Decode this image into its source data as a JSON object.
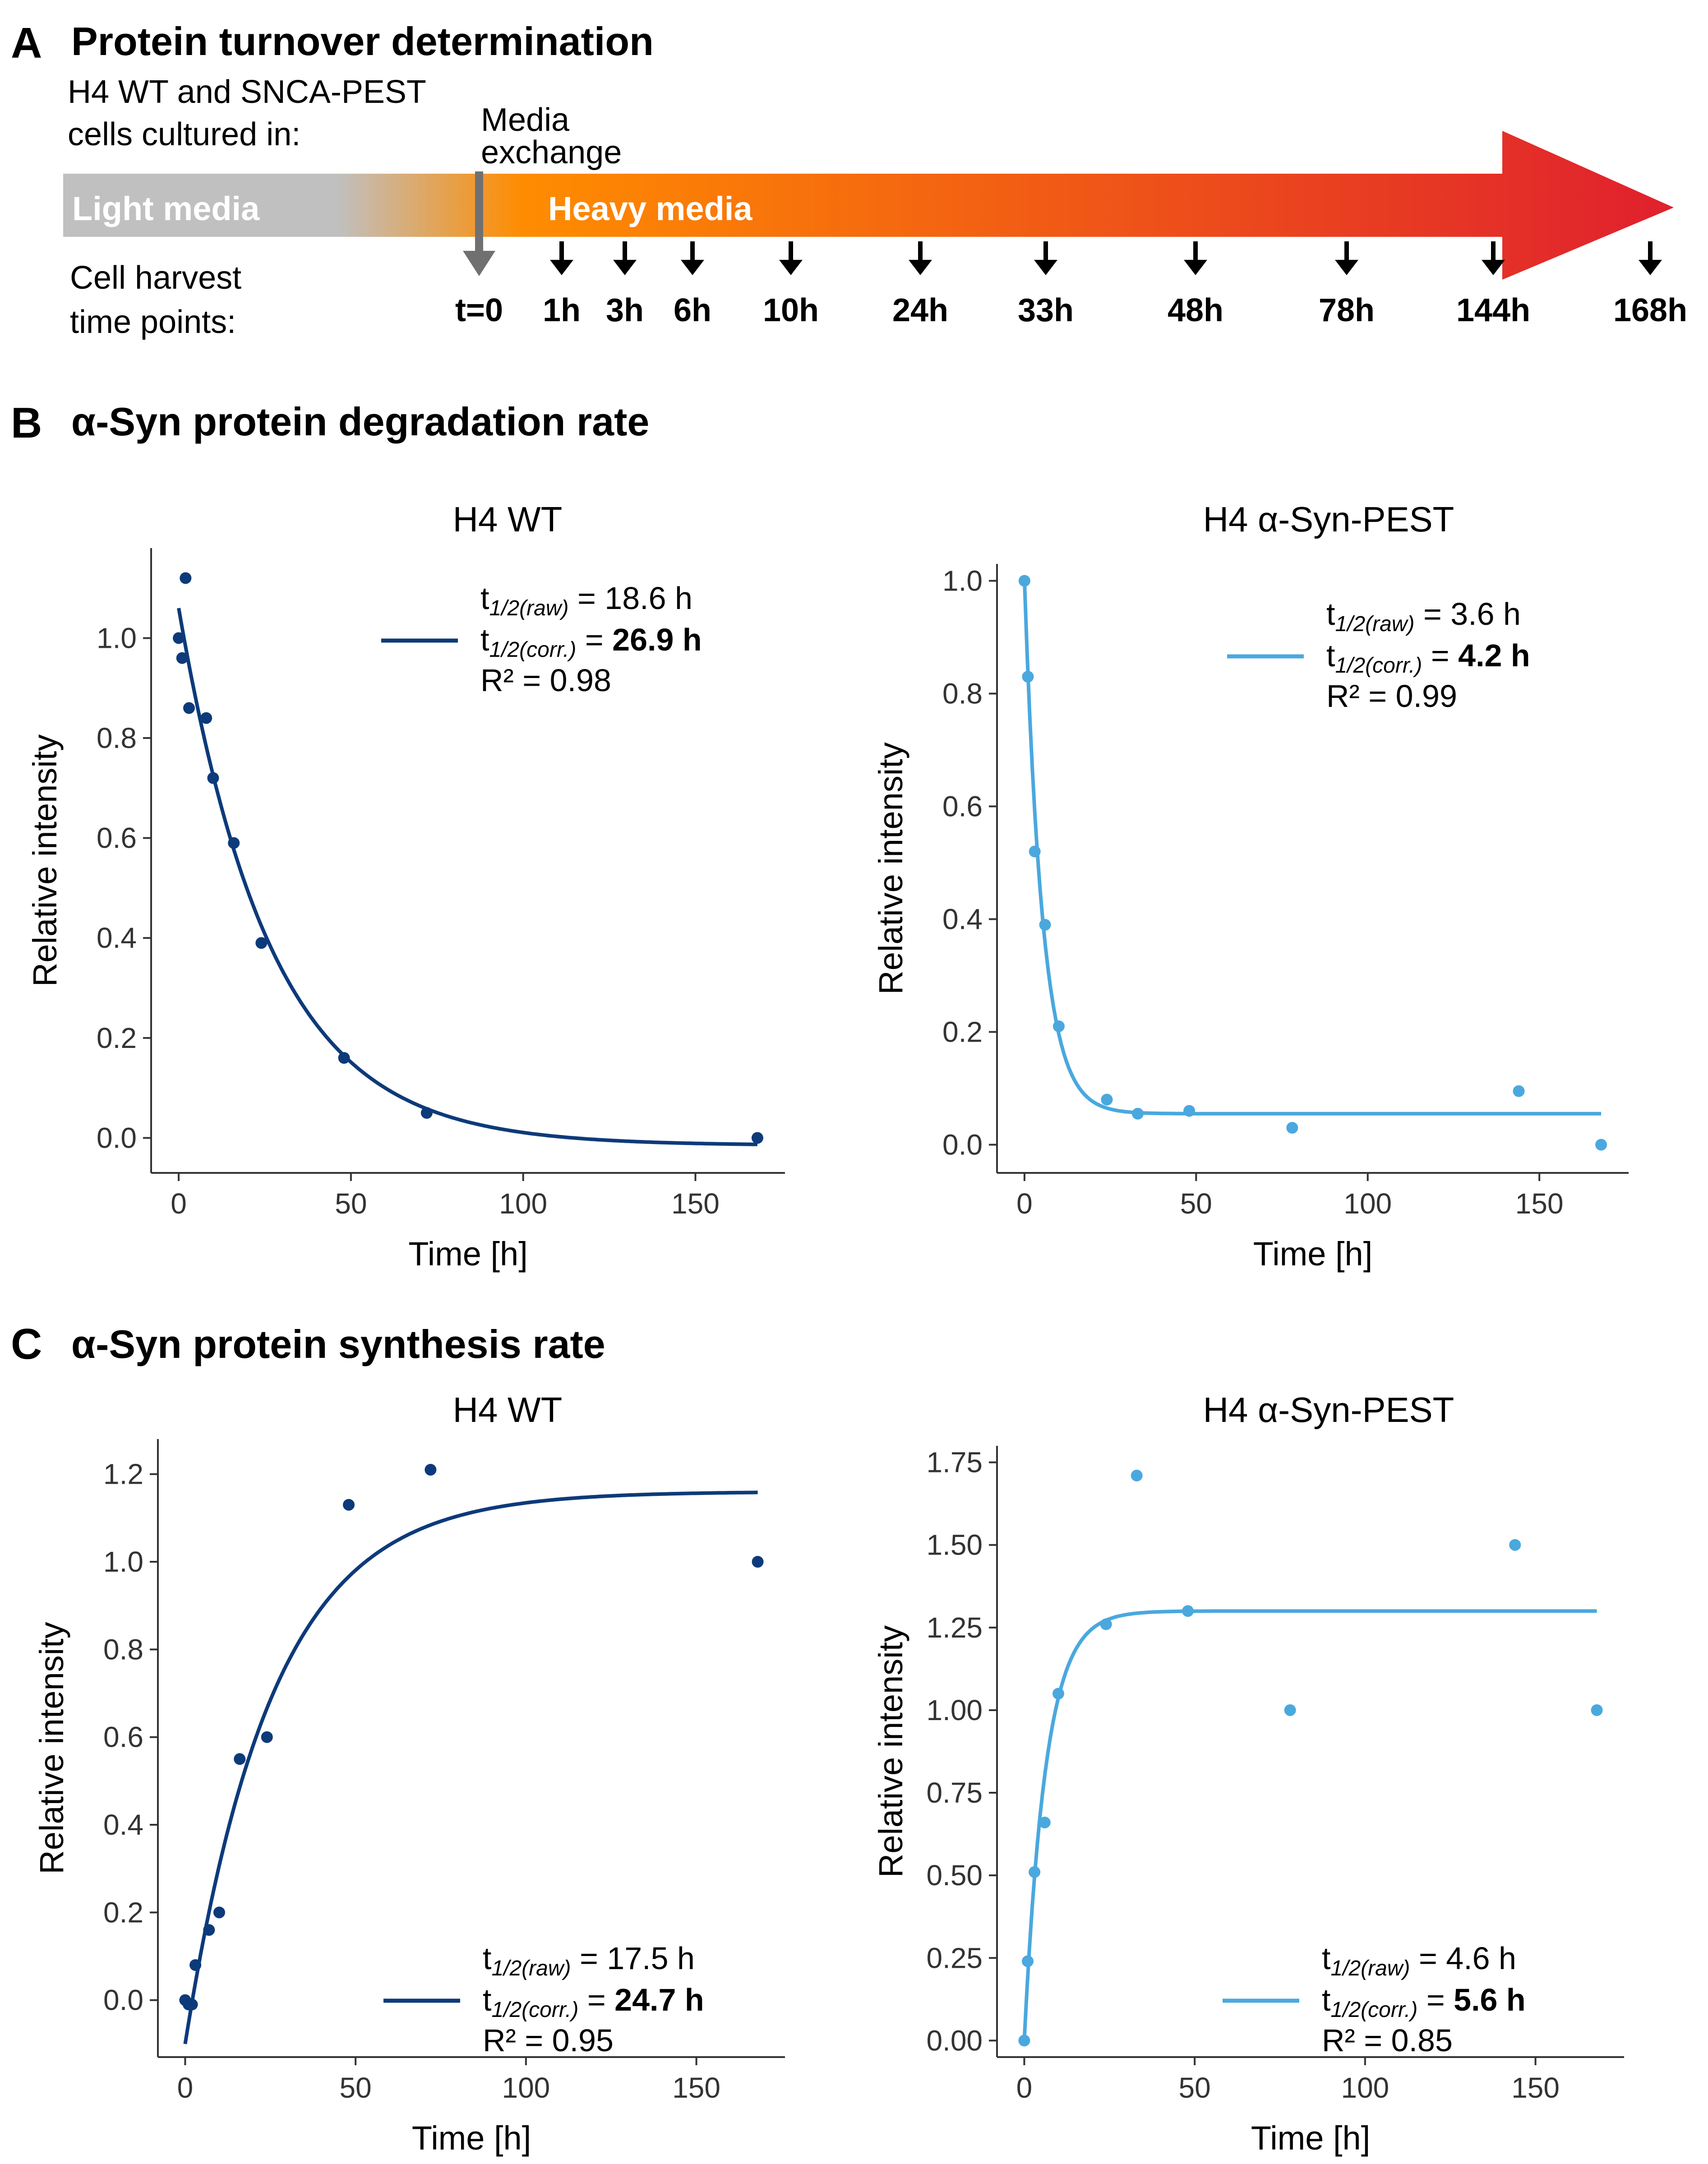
{
  "panel_a": {
    "letter": "A",
    "title": "Protein turnover determination",
    "cells_line1": "H4 WT and SNCA-PEST",
    "cells_line2": "cells cultured in:",
    "exchange_line1": "Media",
    "exchange_line2": "exchange",
    "light_label": "Light media",
    "heavy_label": "Heavy media",
    "harvest_line1": "Cell harvest",
    "harvest_line2": "time points:",
    "time_points": [
      "t=0",
      "1h",
      "3h",
      "6h",
      "10h",
      "24h",
      "33h",
      "48h",
      "78h",
      "144h",
      "168h"
    ],
    "colors": {
      "light": "#c0c0c0",
      "orange": "#ff8c00",
      "red": "#e0202e",
      "marker": "#707070"
    }
  },
  "panel_b": {
    "letter": "B",
    "title": "α-Syn protein degradation rate"
  },
  "panel_c": {
    "letter": "C",
    "title": "α-Syn protein synthesis rate"
  },
  "chart_data": [
    {
      "id": "b_wt",
      "type": "scatter",
      "title": "H4 WT",
      "xlabel": "Time [h]",
      "ylabel": "Relative intensity",
      "xlim": [
        -8,
        176
      ],
      "ylim": [
        -0.07,
        1.18
      ],
      "xticks": [
        0,
        50,
        100,
        150
      ],
      "yticks": [
        0.0,
        0.2,
        0.4,
        0.6,
        0.8,
        1.0
      ],
      "ytick_labels": [
        "0.0",
        "0.2",
        "0.4",
        "0.6",
        "0.8",
        "1.0"
      ],
      "color": "#0d3a7a",
      "points": [
        [
          0,
          1.0
        ],
        [
          1,
          0.96
        ],
        [
          2,
          1.12
        ],
        [
          3,
          0.86
        ],
        [
          8,
          0.84
        ],
        [
          10,
          0.72
        ],
        [
          16,
          0.59
        ],
        [
          24,
          0.39
        ],
        [
          48,
          0.16
        ],
        [
          72,
          0.05
        ],
        [
          168,
          0.0
        ]
      ],
      "fit": {
        "model": "decay",
        "a": 1.075,
        "k": 0.0373,
        "c": -0.015,
        "x0": 0,
        "x1": 168
      },
      "legend": {
        "line1_label": "1/2(raw)",
        "line1_value": "18.6 h",
        "line2_label": "1/2(corr.)",
        "line2_value": "26.9 h",
        "r2": "R² = 0.98",
        "t": "t",
        "eq": " = "
      },
      "legend_position": "top-right"
    },
    {
      "id": "b_pest",
      "type": "scatter",
      "title": "H4 α-Syn-PEST",
      "xlabel": "Time [h]",
      "ylabel": "Relative intensity",
      "xlim": [
        -8,
        176
      ],
      "ylim": [
        -0.05,
        1.03
      ],
      "xticks": [
        0,
        50,
        100,
        150
      ],
      "yticks": [
        0.0,
        0.2,
        0.4,
        0.6,
        0.8,
        1.0
      ],
      "ytick_labels": [
        "0.0",
        "0.2",
        "0.4",
        "0.6",
        "0.8",
        "1.0"
      ],
      "color": "#4aa8de",
      "points": [
        [
          0,
          1.0
        ],
        [
          1,
          0.83
        ],
        [
          3,
          0.52
        ],
        [
          6,
          0.39
        ],
        [
          10,
          0.21
        ],
        [
          24,
          0.08
        ],
        [
          33,
          0.055
        ],
        [
          48,
          0.06
        ],
        [
          78,
          0.03
        ],
        [
          144,
          0.095
        ],
        [
          168,
          0.0
        ]
      ],
      "fit": {
        "model": "decay",
        "a": 0.945,
        "k": 0.19,
        "c": 0.055,
        "x0": 0,
        "x1": 168
      },
      "legend": {
        "line1_label": "1/2(raw)",
        "line1_value": "3.6 h",
        "line2_label": "1/2(corr.)",
        "line2_value": "4.2 h",
        "r2": "R² = 0.99",
        "t": "t",
        "eq": " = "
      },
      "legend_position": "top-right"
    },
    {
      "id": "c_wt",
      "type": "scatter",
      "title": "H4 WT",
      "xlabel": "Time [h]",
      "ylabel": "Relative intensity",
      "xlim": [
        -8,
        176
      ],
      "ylim": [
        -0.13,
        1.28
      ],
      "xticks": [
        0,
        50,
        100,
        150
      ],
      "yticks": [
        0.0,
        0.2,
        0.4,
        0.6,
        0.8,
        1.0,
        1.2
      ],
      "ytick_labels": [
        "0.0",
        "0.2",
        "0.4",
        "0.6",
        "0.8",
        "1.0",
        "1.2"
      ],
      "color": "#0d3a7a",
      "points": [
        [
          0,
          0.0
        ],
        [
          1,
          -0.01
        ],
        [
          2,
          -0.01
        ],
        [
          3,
          0.08
        ],
        [
          7,
          0.16
        ],
        [
          10,
          0.2
        ],
        [
          16,
          0.55
        ],
        [
          24,
          0.6
        ],
        [
          48,
          1.13
        ],
        [
          72,
          1.21
        ],
        [
          168,
          1.0
        ]
      ],
      "fit": {
        "model": "rise",
        "plateau": 1.16,
        "a": 1.26,
        "k": 0.039,
        "x0": 0,
        "x1": 168
      },
      "legend": {
        "line1_label": "1/2(raw)",
        "line1_value": "17.5 h",
        "line2_label": "1/2(corr.)",
        "line2_value": "24.7 h",
        "r2": "R² = 0.95",
        "t": "t",
        "eq": " = "
      },
      "legend_position": "bottom-right"
    },
    {
      "id": "c_pest",
      "type": "scatter",
      "title": "H4 α-Syn-PEST",
      "xlabel": "Time [h]",
      "ylabel": "Relative intensity",
      "xlim": [
        -8,
        176
      ],
      "ylim": [
        -0.05,
        1.8
      ],
      "xticks": [
        0,
        50,
        100,
        150
      ],
      "yticks": [
        0.0,
        0.25,
        0.5,
        0.75,
        1.0,
        1.25,
        1.5,
        1.75
      ],
      "ytick_labels": [
        "0.00",
        "0.25",
        "0.50",
        "0.75",
        "1.00",
        "1.25",
        "1.50",
        "1.75"
      ],
      "color": "#4aa8de",
      "points": [
        [
          0,
          0.0
        ],
        [
          1,
          0.24
        ],
        [
          3,
          0.51
        ],
        [
          6,
          0.66
        ],
        [
          10,
          1.05
        ],
        [
          24,
          1.26
        ],
        [
          33,
          1.71
        ],
        [
          48,
          1.3
        ],
        [
          78,
          1.0
        ],
        [
          144,
          1.5
        ],
        [
          168,
          1.0
        ]
      ],
      "fit": {
        "model": "rise",
        "plateau": 1.3,
        "a": 1.3,
        "k": 0.16,
        "x0": 0,
        "x1": 168
      },
      "legend": {
        "line1_label": "1/2(raw)",
        "line1_value": "4.6 h",
        "line2_label": "1/2(corr.)",
        "line2_value": "5.6 h",
        "r2": "R² = 0.85",
        "t": "t",
        "eq": " = "
      },
      "legend_position": "bottom-right"
    }
  ]
}
